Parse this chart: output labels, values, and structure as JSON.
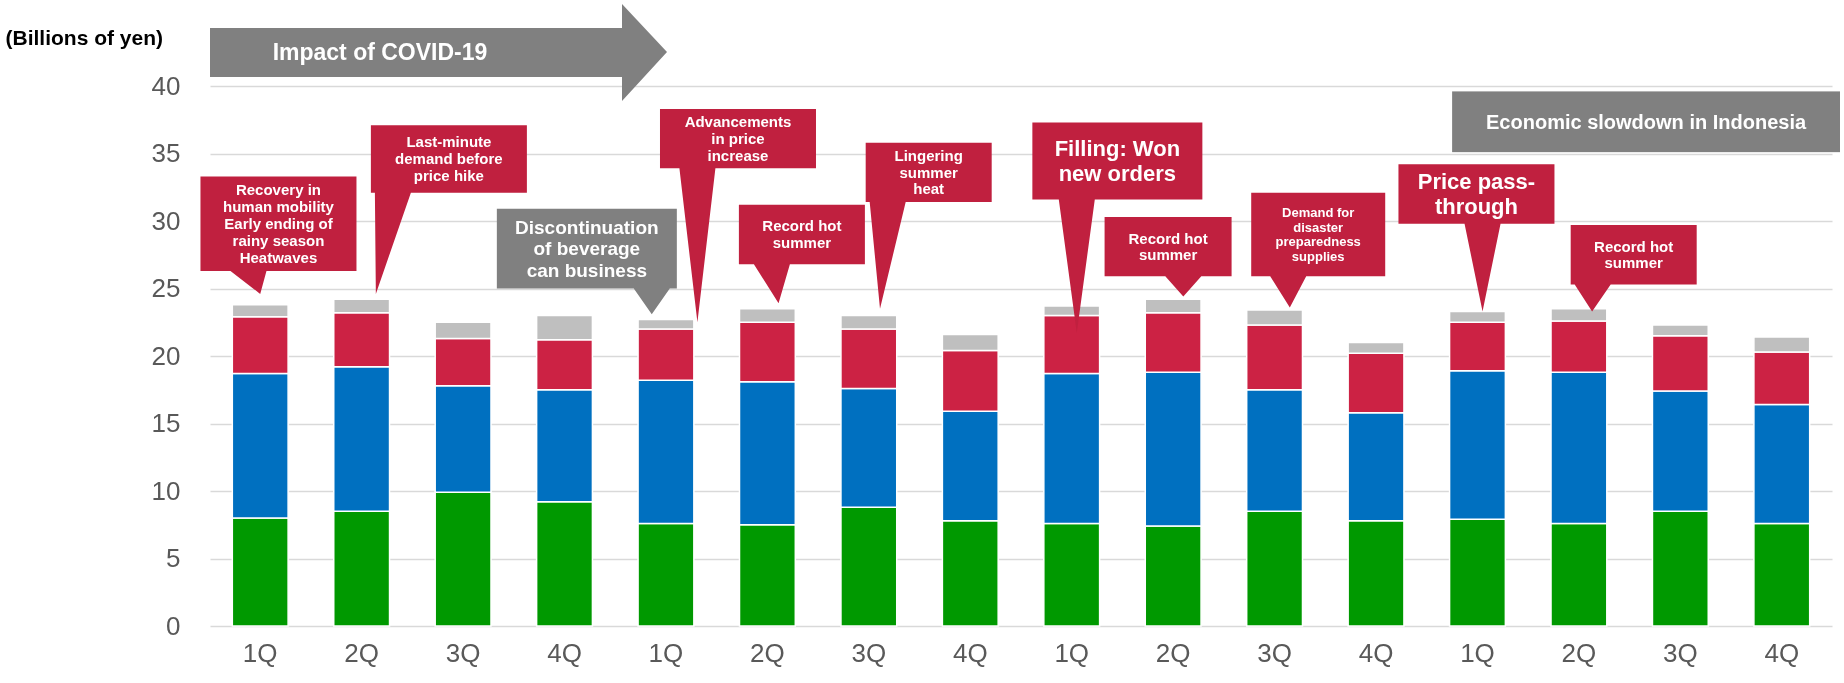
{
  "chart_data": {
    "type": "bar",
    "stacked": true,
    "ylabel": "(Billions of yen)",
    "categories": [
      "1Q",
      "2Q",
      "3Q",
      "4Q",
      "1Q",
      "2Q",
      "3Q",
      "4Q",
      "1Q",
      "2Q",
      "3Q",
      "4Q",
      "1Q",
      "2Q",
      "3Q",
      "4Q"
    ],
    "series": [
      {
        "color": "#009900",
        "values": [
          8.0,
          8.5,
          9.9,
          9.2,
          7.6,
          7.5,
          8.8,
          7.8,
          7.6,
          7.4,
          8.5,
          7.8,
          7.9,
          7.6,
          8.5,
          7.6
        ]
      },
      {
        "color": "#0070c0",
        "values": [
          10.7,
          10.7,
          7.9,
          8.3,
          10.6,
          10.6,
          8.8,
          8.1,
          11.1,
          11.4,
          9.0,
          8.0,
          11.0,
          11.2,
          8.9,
          8.8
        ]
      },
      {
        "color": "#cc2244",
        "values": [
          4.2,
          4.0,
          3.5,
          3.7,
          3.8,
          4.4,
          4.4,
          4.5,
          4.3,
          4.4,
          4.8,
          4.4,
          3.6,
          3.8,
          4.1,
          3.9
        ]
      },
      {
        "color": "#bfbfbf",
        "values": [
          0.9,
          1.0,
          1.2,
          1.8,
          0.7,
          1.0,
          1.0,
          1.2,
          0.7,
          1.0,
          1.1,
          0.8,
          0.8,
          0.9,
          0.8,
          1.1
        ]
      }
    ],
    "ylim": [
      0,
      40
    ],
    "yticks": [
      0,
      5,
      10,
      15,
      20,
      25,
      30,
      35,
      40
    ],
    "grid": "y",
    "annotations": [
      "Impact of COVID-19",
      "Economic slowdown in Indonesia",
      "Recovery in\nhuman mobility\nEarly ending of\nrainy season\nHeatwaves",
      "Last-minute\ndemand before\nprice hike",
      "Discontinuation\nof beverage\ncan business",
      "Advancements\nin price\nincrease",
      "Record hot\nsummer",
      "Lingering\nsummer\nheat",
      "Filling: Won\nnew orders",
      "Record hot\nsummer",
      "Demand for\ndisaster\npreparedness\nsupplies",
      "Price pass-\nthrough",
      "Record hot\nsummer"
    ]
  }
}
